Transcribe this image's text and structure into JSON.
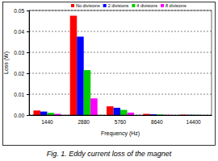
{
  "chart_data": {
    "type": "bar",
    "title": "Fig. 1. Eddy current loss of the magnet",
    "x_label": "Frequency (Hz)",
    "y_label": "Loss (W)",
    "categories": [
      "1440",
      "2880",
      "5760",
      "8640",
      "14400"
    ],
    "series": [
      {
        "name": "No divisions",
        "color": "#ff0000",
        "values": [
          0.0022,
          0.0475,
          0.0042,
          0.0006,
          0.0002
        ]
      },
      {
        "name": "2 divisions",
        "color": "#0000ff",
        "values": [
          0.0017,
          0.0375,
          0.0035,
          0.0004,
          0.0001
        ]
      },
      {
        "name": "4 divisions",
        "color": "#00cc00",
        "values": [
          0.0011,
          0.0215,
          0.0025,
          0.0003,
          0.0001
        ]
      },
      {
        "name": "8 divisions",
        "color": "#ff00ff",
        "values": [
          0.0006,
          0.008,
          0.0012,
          0.0001,
          0.0
        ]
      }
    ],
    "ylim": [
      0,
      0.05
    ],
    "yticks": [
      {
        "value": 0,
        "label": "0.00"
      },
      {
        "value": 0.01,
        "label": "0.01"
      },
      {
        "value": 0.02,
        "label": "0.02"
      },
      {
        "value": 0.03,
        "label": "0.03"
      },
      {
        "value": 0.04,
        "label": "0.04"
      },
      {
        "value": 0.05,
        "label": "0.05"
      }
    ],
    "grid": true,
    "legend": "top"
  }
}
